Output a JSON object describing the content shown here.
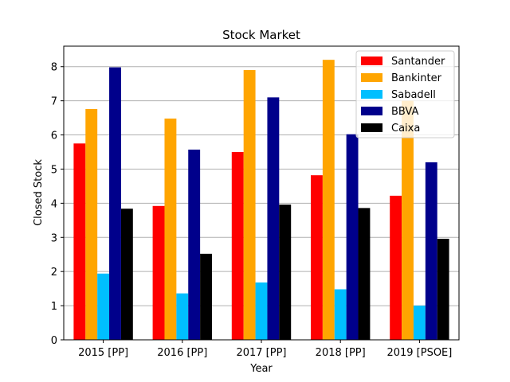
{
  "chart_data": {
    "type": "bar",
    "title": "Stock Market",
    "xlabel": "Year",
    "ylabel": "Closed Stock",
    "categories": [
      "2015 [PP]",
      "2016 [PP]",
      "2017 [PP]",
      "2018 [PP]",
      "2019 [PSOE]"
    ],
    "ylim": [
      0,
      8.6
    ],
    "yticks": [
      0,
      1,
      2,
      3,
      4,
      5,
      6,
      7,
      8
    ],
    "grid": "horizontal",
    "legend_position": "top-right",
    "series": [
      {
        "name": "Santander",
        "color": "#ff0000",
        "values": [
          5.75,
          3.92,
          5.5,
          4.82,
          4.22
        ]
      },
      {
        "name": "Bankinter",
        "color": "#ffa500",
        "values": [
          6.76,
          6.48,
          7.9,
          8.2,
          7.0
        ]
      },
      {
        "name": "Sabadell",
        "color": "#00bfff",
        "values": [
          1.94,
          1.36,
          1.68,
          1.48,
          1.0
        ]
      },
      {
        "name": "BBVA",
        "color": "#00008b",
        "values": [
          7.98,
          5.57,
          7.1,
          6.02,
          5.2
        ]
      },
      {
        "name": "Caixa",
        "color": "#000000",
        "values": [
          3.84,
          2.52,
          3.96,
          3.86,
          2.96
        ]
      }
    ]
  }
}
